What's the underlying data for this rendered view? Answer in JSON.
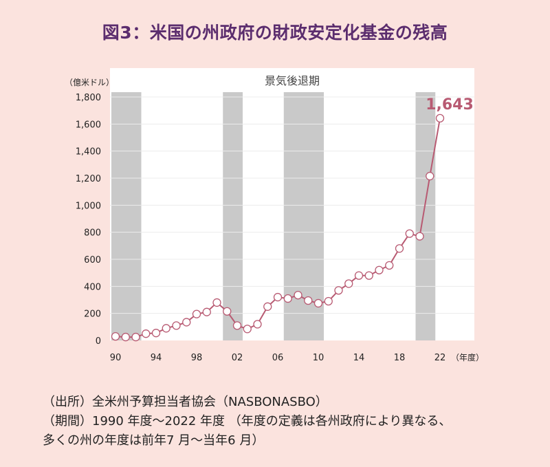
{
  "title": "図3：米国の州政府の財政安定化基金の残高",
  "chart_data": {
    "type": "line",
    "ylabel": "（億米ドル）",
    "xlabel": "（年度）",
    "ylim": [
      0,
      1800
    ],
    "xlim": [
      1990,
      2023
    ],
    "yticks": [
      0,
      200,
      400,
      600,
      800,
      "1,000",
      "1,200",
      "1,400",
      "1,600",
      "1,800"
    ],
    "ytick_values": [
      0,
      200,
      400,
      600,
      800,
      1000,
      1200,
      1400,
      1600,
      1800
    ],
    "xticks": [
      "90",
      "94",
      "98",
      "02",
      "06",
      "10",
      "14",
      "18",
      "22"
    ],
    "xtick_values": [
      1990,
      1994,
      1998,
      2002,
      2006,
      2010,
      2014,
      2018,
      2022
    ],
    "recession_label": "景気後退期",
    "recessions": [
      [
        1990,
        1992
      ],
      [
        2001,
        2002
      ],
      [
        2007,
        2010
      ],
      [
        2020,
        2021
      ]
    ],
    "annotation": "1,643",
    "grid": true,
    "series": [
      {
        "color": "#b85a72",
        "x": [
          1990,
          1991,
          1992,
          1993,
          1994,
          1995,
          1996,
          1997,
          1998,
          1999,
          2000,
          2001,
          2002,
          2003,
          2004,
          2005,
          2006,
          2007,
          2008,
          2009,
          2010,
          2011,
          2012,
          2013,
          2014,
          2015,
          2016,
          2017,
          2018,
          2019,
          2020,
          2021,
          2022
        ],
        "y": [
          30,
          25,
          25,
          50,
          55,
          90,
          110,
          135,
          195,
          210,
          280,
          215,
          110,
          85,
          120,
          250,
          320,
          310,
          335,
          295,
          275,
          290,
          370,
          420,
          480,
          480,
          520,
          555,
          680,
          790,
          770,
          1215,
          1643
        ]
      }
    ]
  },
  "source": {
    "line1": "（出所）全米州予算担当者協会（NASBONASBO）",
    "line2": "（期間）1990 年度～2022 年度 （年度の定義は各州政府により異なる、",
    "line3": "多くの州の年度は前年7 月～当年6 月）"
  }
}
